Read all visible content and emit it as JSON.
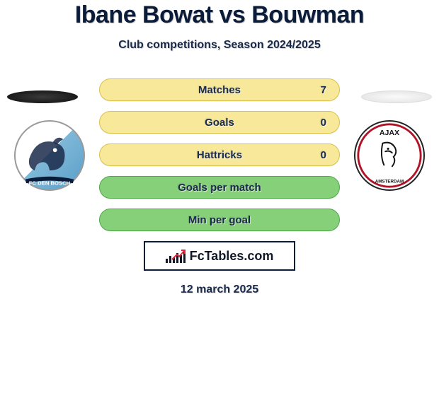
{
  "title": "Ibane Bowat vs Bouwman",
  "subtitle": "Club competitions, Season 2024/2025",
  "date": "12 march 2025",
  "site_label": "FcTables.com",
  "colors": {
    "text_primary": "#0b1b3a",
    "row_yellow_bg": "#f7e89a",
    "row_yellow_border": "#d9c24a",
    "row_green_bg": "#86d07a",
    "row_green_border": "#4fa84a",
    "badge_border": "#0b1b3a"
  },
  "left_team": {
    "name": "FC Den Bosch",
    "crest": "den-bosch"
  },
  "right_team": {
    "name": "Ajax",
    "crest": "ajax"
  },
  "stats": [
    {
      "label": "Matches",
      "value": "7",
      "style": "yellow"
    },
    {
      "label": "Goals",
      "value": "0",
      "style": "yellow"
    },
    {
      "label": "Hattricks",
      "value": "0",
      "style": "yellow"
    },
    {
      "label": "Goals per match",
      "value": "",
      "style": "green"
    },
    {
      "label": "Min per goal",
      "value": "",
      "style": "green"
    }
  ]
}
